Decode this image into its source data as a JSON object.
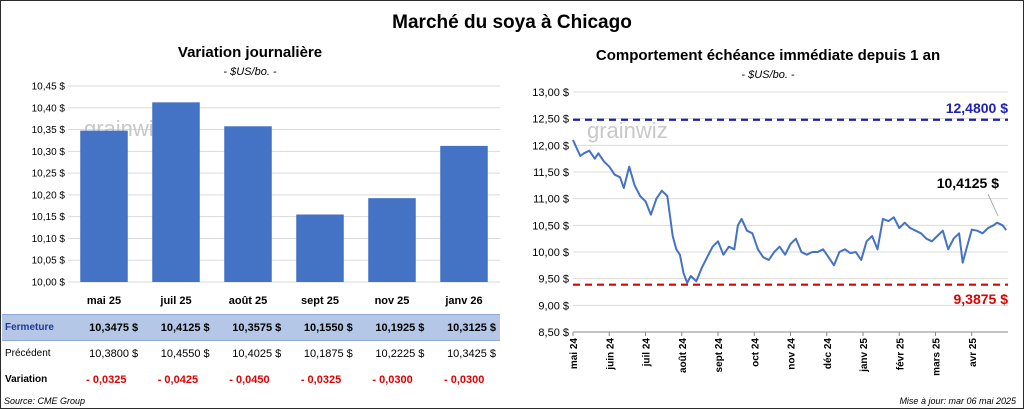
{
  "main_title": "Marché du soya à Chicago",
  "left": {
    "title": "Variation journalière",
    "unit": "- $US/bo. -",
    "watermark": "grainwiz"
  },
  "right": {
    "title": "Comportement échéance immédiate depuis 1 an",
    "unit": "- $US/bo. -",
    "watermark": "grainwiz",
    "high_label": "12,4800 $",
    "low_label": "9,3875 $",
    "last_label": "10,4125 $"
  },
  "table": {
    "rows": [
      {
        "label": "Fermeture",
        "values": [
          "10,3475  $",
          "10,4125  $",
          "10,3575  $",
          "10,1550  $",
          "10,1925  $",
          "10,3125  $"
        ]
      },
      {
        "label": "Précédent",
        "values": [
          "10,3800  $",
          "10,4550  $",
          "10,4025  $",
          "10,1875  $",
          "10,2225  $",
          "10,3425  $"
        ]
      },
      {
        "label": "Variation",
        "values": [
          "- 0,0325",
          "- 0,0425",
          "- 0,0450",
          "- 0,0325",
          "- 0,0300",
          "- 0,0300"
        ]
      }
    ]
  },
  "footer": {
    "source": "Source: CME Group",
    "updated": "Mise à jour: mar 06 mai 2025"
  },
  "colors": {
    "bar": "#4472c4",
    "line": "#4472c4",
    "high_line": "#1f1fb4",
    "low_line": "#e00000",
    "grid": "#d9d9d9",
    "table_highlight": "#b4c7e7"
  },
  "chart_data": [
    {
      "type": "bar",
      "title": "Variation journalière",
      "ylabel": "$US/bo.",
      "categories": [
        "mai 25",
        "juil 25",
        "août 25",
        "sept 25",
        "nov 25",
        "janv 26"
      ],
      "values": [
        10.3475,
        10.4125,
        10.3575,
        10.155,
        10.1925,
        10.3125
      ],
      "ylim": [
        10.0,
        10.45
      ],
      "yticks": [
        10.0,
        10.05,
        10.1,
        10.15,
        10.2,
        10.25,
        10.3,
        10.35,
        10.4,
        10.45
      ],
      "ytick_labels": [
        "10,00 $",
        "10,05 $",
        "10,10 $",
        "10,15 $",
        "10,20 $",
        "10,25 $",
        "10,30 $",
        "10,35 $",
        "10,40 $",
        "10,45 $"
      ],
      "grid": true
    },
    {
      "type": "line",
      "title": "Comportement échéance immédiate depuis 1 an",
      "ylabel": "$US/bo.",
      "ylim": [
        8.5,
        13.0
      ],
      "yticks": [
        8.5,
        9.0,
        9.5,
        10.0,
        10.5,
        11.0,
        11.5,
        12.0,
        12.5,
        13.0
      ],
      "ytick_labels": [
        "8,50 $",
        "9,00 $",
        "9,50 $",
        "10,00 $",
        "10,50 $",
        "11,00 $",
        "11,50 $",
        "12,00 $",
        "12,50 $",
        "13,00 $"
      ],
      "x_tick_labels": [
        "mai 24",
        "juin 24",
        "juil 24",
        "août 24",
        "sept 24",
        "oct 24",
        "nov 24",
        "déc 24",
        "janv 25",
        "févr 25",
        "mars 25",
        "avr 25"
      ],
      "x_range": [
        0,
        12
      ],
      "series": [
        {
          "x": [
            0.0,
            0.1,
            0.2,
            0.3,
            0.45,
            0.6,
            0.7,
            0.85,
            1.0,
            1.15,
            1.3,
            1.4,
            1.55,
            1.7,
            1.85,
            2.0,
            2.15,
            2.3,
            2.45,
            2.6,
            2.75,
            2.85,
            2.95,
            3.05,
            3.15,
            3.25,
            3.4,
            3.55,
            3.7,
            3.85,
            4.0,
            4.15,
            4.3,
            4.45,
            4.55,
            4.65,
            4.8,
            4.95,
            5.1,
            5.25,
            5.4,
            5.55,
            5.7,
            5.85,
            6.0,
            6.15,
            6.3,
            6.45,
            6.6,
            6.75,
            6.9,
            7.05,
            7.2,
            7.35,
            7.5,
            7.65,
            7.8,
            7.95,
            8.1,
            8.25,
            8.4,
            8.55,
            8.7,
            8.85,
            9.0,
            9.15,
            9.3,
            9.45,
            9.6,
            9.75,
            9.9,
            10.05,
            10.2,
            10.35,
            10.5,
            10.65,
            10.75,
            10.85,
            11.0,
            11.15,
            11.3,
            11.45,
            11.6,
            11.7,
            11.85,
            11.95
          ],
          "y": [
            12.1,
            11.95,
            11.8,
            11.85,
            11.9,
            11.75,
            11.85,
            11.7,
            11.6,
            11.45,
            11.4,
            11.2,
            11.6,
            11.25,
            11.05,
            10.95,
            10.7,
            11.0,
            11.15,
            11.05,
            10.3,
            10.05,
            9.95,
            9.6,
            9.42,
            9.55,
            9.45,
            9.7,
            9.9,
            10.1,
            10.2,
            9.95,
            10.1,
            10.05,
            10.5,
            10.62,
            10.4,
            10.35,
            10.05,
            9.9,
            9.85,
            10.0,
            10.1,
            9.95,
            10.15,
            10.25,
            10.0,
            9.95,
            10.0,
            10.0,
            10.05,
            9.9,
            9.75,
            10.0,
            10.05,
            9.98,
            10.0,
            9.85,
            10.2,
            10.3,
            10.05,
            10.62,
            10.58,
            10.65,
            10.45,
            10.55,
            10.45,
            10.4,
            10.35,
            10.25,
            10.2,
            10.3,
            10.4,
            10.05,
            10.25,
            10.35,
            9.8,
            10.05,
            10.42,
            10.4,
            10.35,
            10.45,
            10.5,
            10.55,
            10.5,
            10.41
          ]
        }
      ],
      "hlines": [
        {
          "label": "12,4800 $",
          "value": 12.48,
          "style": "dashed",
          "color": "#1f1fb4"
        },
        {
          "label": "9,3875 $",
          "value": 9.3875,
          "style": "dashed",
          "color": "#e00000"
        }
      ],
      "annotations": [
        {
          "label": "10,4125 $",
          "value": 10.4125
        }
      ],
      "grid": true
    }
  ]
}
